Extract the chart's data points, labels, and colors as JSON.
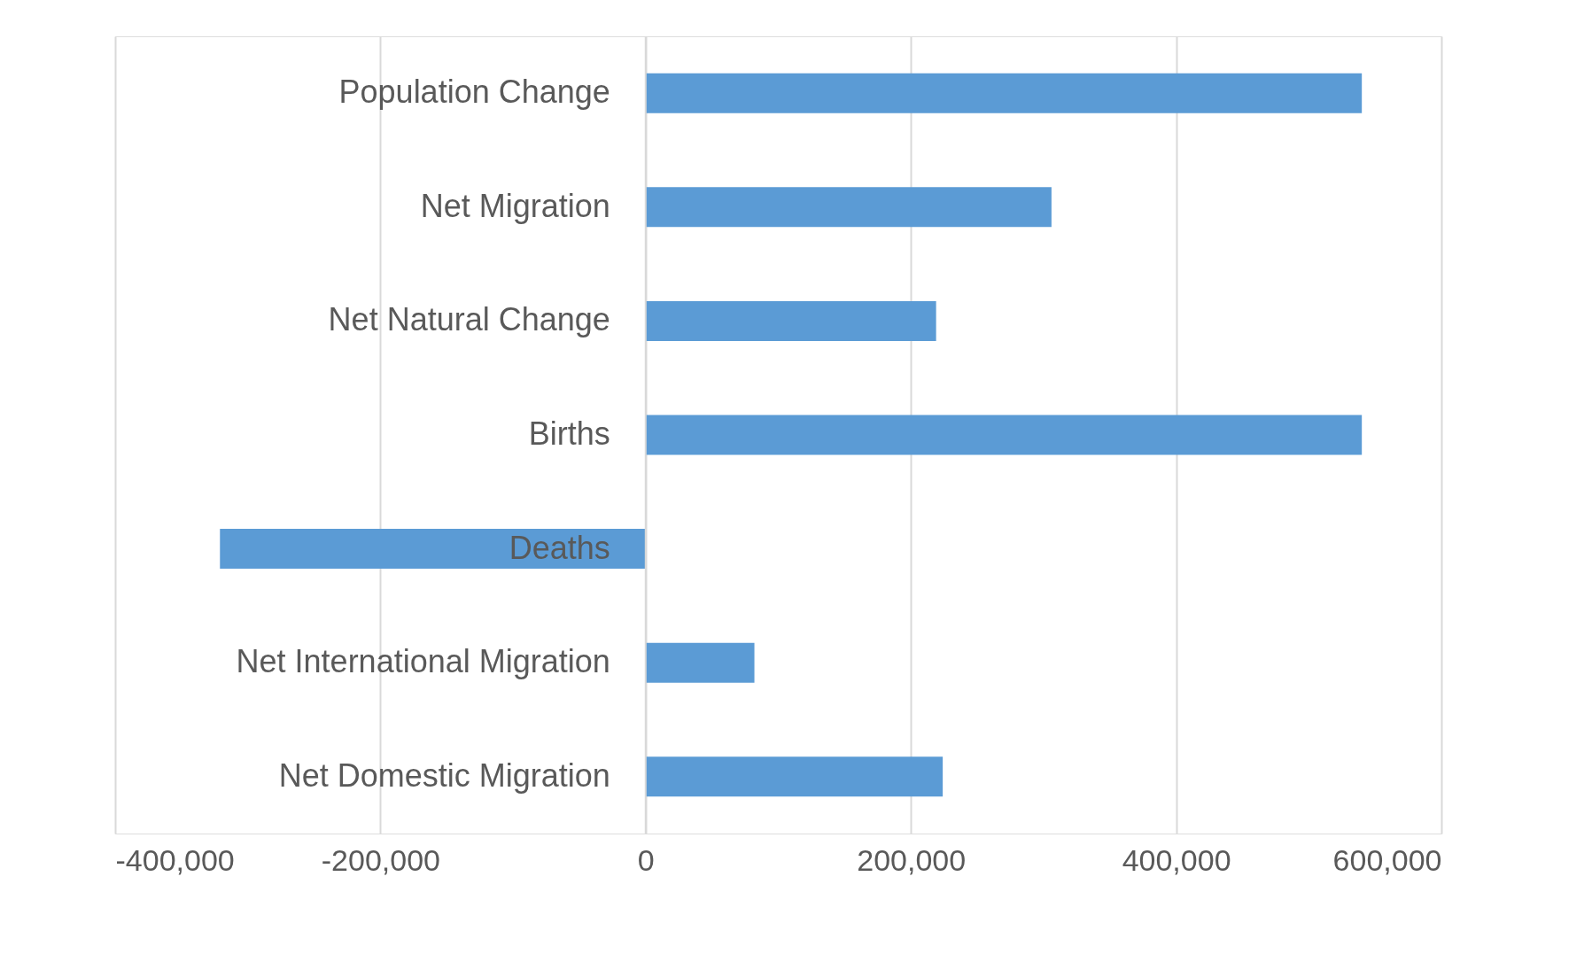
{
  "chart_data": {
    "type": "bar",
    "orientation": "horizontal",
    "categories": [
      "Population Change",
      "Net Migration",
      "Net Natural Change",
      "Births",
      "Deaths",
      "Net International Migration",
      "Net Domestic Migration"
    ],
    "values": [
      540000,
      306000,
      219000,
      540000,
      -321000,
      82000,
      224000
    ],
    "color": "#5b9bd5",
    "xlim": [
      -400000,
      600000
    ],
    "xticks": [
      {
        "value": -400000,
        "label": "-400,000"
      },
      {
        "value": -200000,
        "label": "-200,000"
      },
      0,
      {
        "value": 200000,
        "label": "200,000"
      },
      {
        "value": 400000,
        "label": "400,000"
      },
      {
        "value": 600000,
        "label": "600,000"
      }
    ],
    "grid": "x"
  }
}
